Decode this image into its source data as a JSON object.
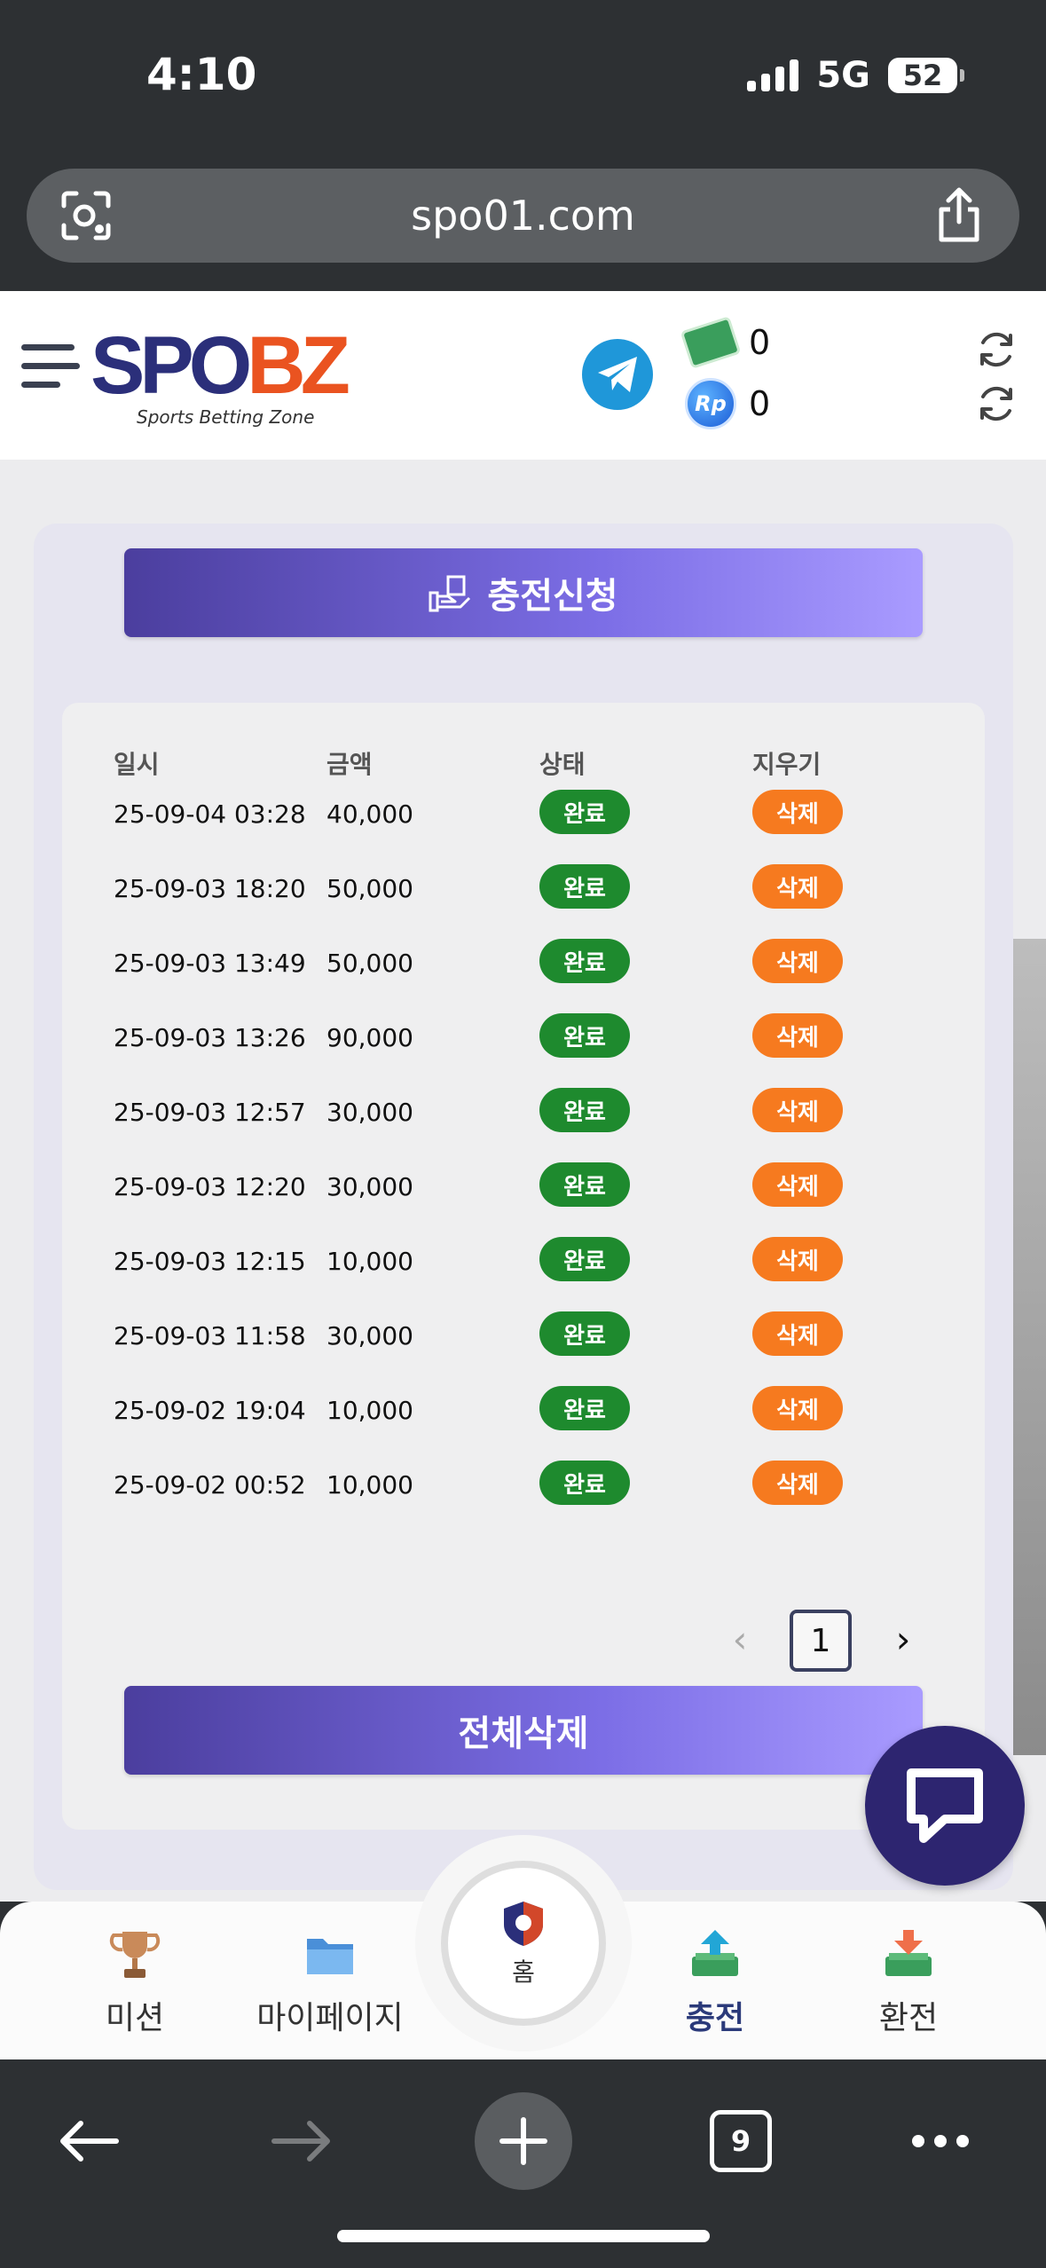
{
  "status_bar": {
    "time": "4:10",
    "network": "5G",
    "battery": "52"
  },
  "url_bar": {
    "domain": "spo01.com"
  },
  "header": {
    "logo_main_a": "SPO",
    "logo_main_b": "BZ",
    "logo_sub": "Sports Betting Zone",
    "cash_balance": "0",
    "rp_badge": "Rp",
    "rp_balance": "0"
  },
  "panel": {
    "charge_button": "충전신청",
    "delete_all_button": "전체삭제"
  },
  "table": {
    "headers": [
      "일시",
      "금액",
      "상태",
      "지우기"
    ],
    "rows": [
      {
        "date": "25-09-04 03:28",
        "amount": "40,000",
        "status": "완료",
        "action": "삭제"
      },
      {
        "date": "25-09-03 18:20",
        "amount": "50,000",
        "status": "완료",
        "action": "삭제"
      },
      {
        "date": "25-09-03 13:49",
        "amount": "50,000",
        "status": "완료",
        "action": "삭제"
      },
      {
        "date": "25-09-03 13:26",
        "amount": "90,000",
        "status": "완료",
        "action": "삭제"
      },
      {
        "date": "25-09-03 12:57",
        "amount": "30,000",
        "status": "완료",
        "action": "삭제"
      },
      {
        "date": "25-09-03 12:20",
        "amount": "30,000",
        "status": "완료",
        "action": "삭제"
      },
      {
        "date": "25-09-03 12:15",
        "amount": "10,000",
        "status": "완료",
        "action": "삭제"
      },
      {
        "date": "25-09-03 11:58",
        "amount": "30,000",
        "status": "완료",
        "action": "삭제"
      },
      {
        "date": "25-09-02 19:04",
        "amount": "10,000",
        "status": "완료",
        "action": "삭제"
      },
      {
        "date": "25-09-02 00:52",
        "amount": "10,000",
        "status": "완료",
        "action": "삭제"
      }
    ]
  },
  "pagination": {
    "prev": "‹",
    "current": "1",
    "next": "›"
  },
  "bottom_nav": {
    "mission": "미션",
    "mypage": "마이페이지",
    "home": "홈",
    "charge": "충전",
    "exchange": "환전"
  },
  "browser_toolbar": {
    "tab_count": "9"
  },
  "colors": {
    "accent_purple": "#7c6ee6",
    "status_done": "#1e8a2e",
    "delete_orange": "#f67a1f",
    "logo_navy": "#2b2f7a",
    "logo_orange": "#ea5320"
  },
  "icons": {
    "url_left": "camera-lens-icon",
    "url_right": "share-icon",
    "header_social": "telegram-icon",
    "chat": "chat-bubble-icon"
  }
}
